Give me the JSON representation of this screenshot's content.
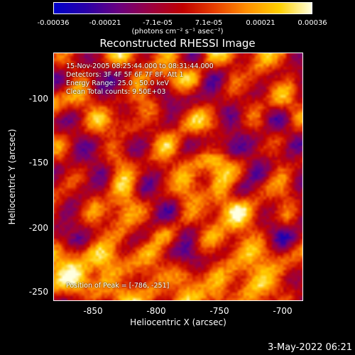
{
  "colorbar": {
    "gradient": [
      "#0000c8",
      "#2a00a8",
      "#6a0080",
      "#9a0040",
      "#c00000",
      "#e84000",
      "#ff9000",
      "#ffd000",
      "#ffffe0"
    ],
    "ticks": [
      "-0.00036",
      "-0.00021",
      "-7.1e-05",
      "7.1e-05",
      "0.00021",
      "0.00036"
    ],
    "units": "(photons cm⁻² s⁻¹ asec⁻²)"
  },
  "title": "Reconstructed RHESSI Image",
  "info": {
    "time_range": "15-Nov-2005 08:25:44.000 to 08:31:44.000",
    "detectors": "Detectors: 3F 4F 5F 6F 7F 8F, Att 1",
    "energy": "Energy Range: 25.0 - 50.0 keV",
    "method": "Clean     Total counts: 9.50E+03",
    "peak": "Position of Peak = [-786, -251]"
  },
  "axes": {
    "xlabel": "Heliocentric X (arcsec)",
    "ylabel": "Heliocentric Y (arcsec)",
    "xticks": [
      "-850",
      "-800",
      "-750",
      "-700"
    ],
    "yticks": [
      "-100",
      "-150",
      "-200",
      "-250"
    ]
  },
  "date_stamp": "3-May-2022 06:21"
}
